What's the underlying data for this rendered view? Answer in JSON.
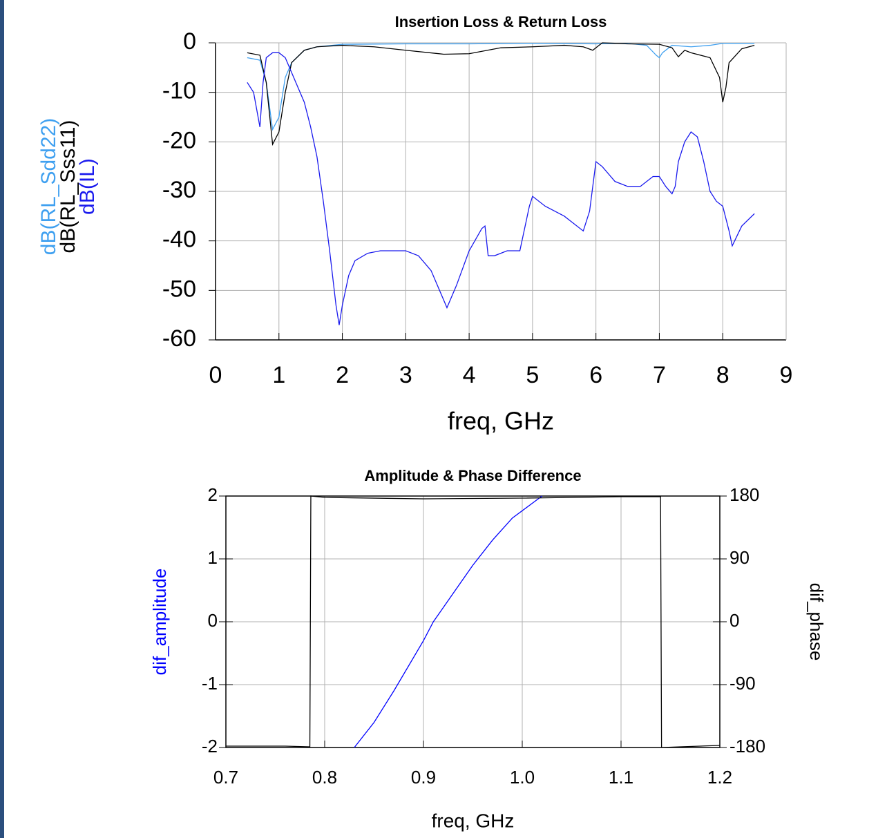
{
  "chart_data": [
    {
      "type": "line",
      "title": "Insertion Loss & Return Loss",
      "x_label": "freq, GHz",
      "xlim": [
        0,
        9
      ],
      "xticks": [
        0,
        1,
        2,
        3,
        4,
        5,
        6,
        7,
        8,
        9
      ],
      "ylim": [
        -60,
        0
      ],
      "yticks": [
        0,
        -10,
        -20,
        -30,
        -40,
        -50,
        -60
      ],
      "grid": true,
      "series": [
        {
          "name": "dB(RL_Sdd22)",
          "color": "#3fa0f0",
          "x": [
            0.5,
            0.7,
            0.8,
            0.9,
            1.0,
            1.1,
            1.2,
            1.4,
            1.6,
            2.0,
            3.0,
            4.0,
            5.0,
            6.0,
            6.5,
            6.8,
            6.95,
            7.0,
            7.05,
            7.2,
            7.5,
            7.8,
            8.0,
            8.5
          ],
          "values": [
            -3,
            -3.5,
            -8,
            -17.5,
            -15,
            -7,
            -4,
            -1.5,
            -0.8,
            -0.3,
            -0.2,
            -0.2,
            -0.1,
            -0.2,
            -0.1,
            -0.5,
            -2.5,
            -3,
            -2,
            -0.5,
            -0.8,
            -0.5,
            -0.1,
            -0.1
          ]
        },
        {
          "name": "dB(RL_Sss11)",
          "color": "#000000",
          "x": [
            0.5,
            0.7,
            0.8,
            0.9,
            1.0,
            1.1,
            1.2,
            1.4,
            1.6,
            2.0,
            2.5,
            3.0,
            3.6,
            4.0,
            4.5,
            5.0,
            5.5,
            5.8,
            5.95,
            6.0,
            6.1,
            6.5,
            7.0,
            7.2,
            7.3,
            7.4,
            7.5,
            7.8,
            7.95,
            8.0,
            8.05,
            8.1,
            8.3,
            8.5
          ],
          "values": [
            -2,
            -2.5,
            -8,
            -20.5,
            -18,
            -10,
            -4,
            -1.5,
            -0.8,
            -0.5,
            -0.8,
            -1.5,
            -2.3,
            -2.2,
            -1,
            -0.8,
            -0.5,
            -0.8,
            -1.5,
            -1,
            0,
            -0.2,
            -0.3,
            -1,
            -2.8,
            -1.5,
            -2,
            -3,
            -7,
            -12,
            -9,
            -4,
            -1.2,
            -0.5
          ]
        },
        {
          "name": "dB(IL)",
          "color": "#1a1aee",
          "x": [
            0.5,
            0.6,
            0.7,
            0.75,
            0.8,
            0.9,
            1.0,
            1.1,
            1.2,
            1.3,
            1.4,
            1.5,
            1.6,
            1.7,
            1.8,
            1.9,
            1.95,
            2.0,
            2.1,
            2.2,
            2.4,
            2.6,
            2.8,
            3.0,
            3.2,
            3.4,
            3.6,
            3.65,
            3.8,
            4.0,
            4.2,
            4.25,
            4.3,
            4.4,
            4.6,
            4.8,
            4.95,
            5.0,
            5.2,
            5.5,
            5.8,
            5.9,
            6.0,
            6.1,
            6.3,
            6.5,
            6.7,
            6.9,
            7.0,
            7.1,
            7.2,
            7.25,
            7.3,
            7.4,
            7.5,
            7.6,
            7.7,
            7.8,
            7.9,
            8.0,
            8.1,
            8.15,
            8.3,
            8.5
          ],
          "values": [
            -8,
            -10,
            -17,
            -8,
            -3,
            -2,
            -2,
            -3,
            -6,
            -9,
            -12,
            -17,
            -23,
            -32,
            -42,
            -53,
            -57,
            -53,
            -47,
            -44,
            -42.5,
            -42,
            -42,
            -42,
            -43,
            -46,
            -52,
            -53.5,
            -49,
            -42,
            -37.5,
            -37,
            -43,
            -43,
            -42,
            -42,
            -33,
            -31,
            -33,
            -35,
            -38,
            -34,
            -24,
            -25,
            -28,
            -29,
            -29,
            -27,
            -27,
            -29,
            -30.5,
            -29,
            -24,
            -20,
            -18,
            -19,
            -24,
            -30,
            -32,
            -33,
            -38,
            -41,
            -37,
            -34.5
          ]
        }
      ]
    },
    {
      "type": "line",
      "title": "Amplitude & Phase Difference",
      "x_label": "freq, GHz",
      "xlim": [
        0.7,
        1.2
      ],
      "xticks": [
        0.7,
        0.8,
        0.9,
        {
          "value": 1,
          "label": "1.0"
        },
        1.1,
        1.2
      ],
      "ylim": [
        -2,
        2
      ],
      "yticks": [
        2,
        1,
        0,
        -1,
        -2
      ],
      "y2lim": [
        -180,
        180
      ],
      "y2ticks": [
        180,
        90,
        0,
        -90,
        -180
      ],
      "grid": true,
      "series": [
        {
          "name": "dif_amplitude",
          "color": "#0000ff",
          "x": [
            0.83,
            0.85,
            0.87,
            0.9,
            0.91,
            0.93,
            0.95,
            0.97,
            0.99,
            1.02
          ],
          "values": [
            -2,
            -1.6,
            -1.1,
            -0.3,
            0,
            0.45,
            0.9,
            1.3,
            1.65,
            2
          ]
        },
        {
          "name": "dif_phase",
          "color": "#000000",
          "axis": "y2",
          "x": [
            0.7,
            0.76,
            0.785,
            0.786,
            0.8,
            0.9,
            1.0,
            1.1,
            1.14,
            1.141,
            1.16,
            1.2
          ],
          "values": [
            -178,
            -178,
            -179,
            180,
            178,
            176,
            177,
            179,
            179,
            -180,
            -179,
            -177
          ]
        }
      ]
    }
  ]
}
